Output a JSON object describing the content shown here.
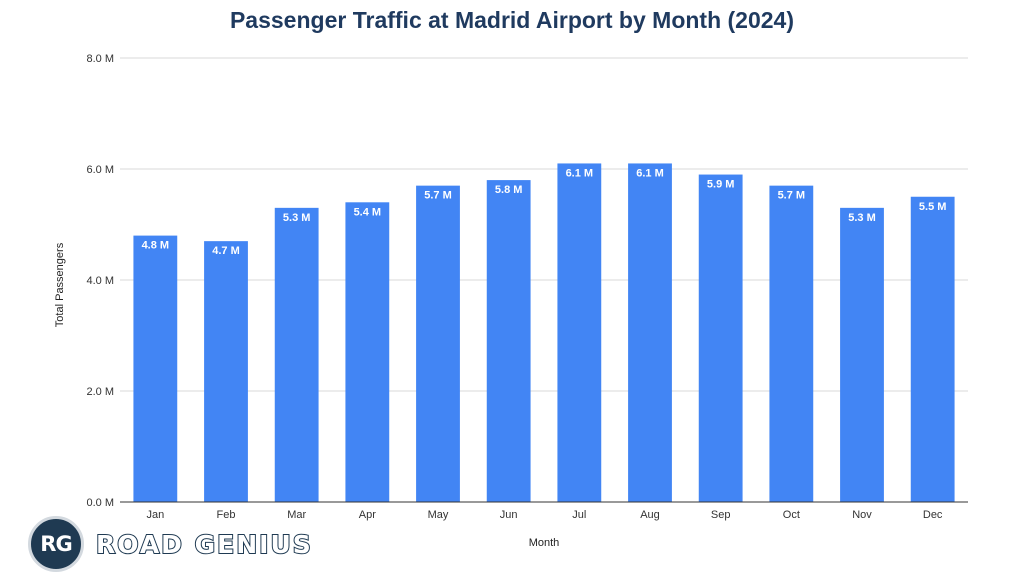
{
  "chart_data": {
    "type": "bar",
    "title": "Passenger Traffic at Madrid Airport by Month (2024)",
    "xlabel": "Month",
    "ylabel": "Total Passengers",
    "categories": [
      "Jan",
      "Feb",
      "Mar",
      "Apr",
      "May",
      "Jun",
      "Jul",
      "Aug",
      "Sep",
      "Oct",
      "Nov",
      "Dec"
    ],
    "values": [
      4.8,
      4.7,
      5.3,
      5.4,
      5.7,
      5.8,
      6.1,
      6.1,
      5.9,
      5.7,
      5.3,
      5.5
    ],
    "data_labels": [
      "4.8 M",
      "4.7 M",
      "5.3 M",
      "5.4 M",
      "5.7 M",
      "5.8 M",
      "6.1 M",
      "6.1 M",
      "5.9 M",
      "5.7 M",
      "5.3 M",
      "5.5 M"
    ],
    "yticks": [
      0,
      2,
      4,
      6,
      8
    ],
    "ytick_labels": [
      "0.0 M",
      "2.0 M",
      "4.0 M",
      "6.0 M",
      "8.0 M"
    ],
    "ylim": [
      0,
      8
    ],
    "grid": true,
    "bar_color": "#4285f4",
    "title_color": "#1f3a5f"
  },
  "logo": {
    "badge": "RG",
    "text": "ROAD GENIUS",
    "color": "#1f3a52"
  }
}
